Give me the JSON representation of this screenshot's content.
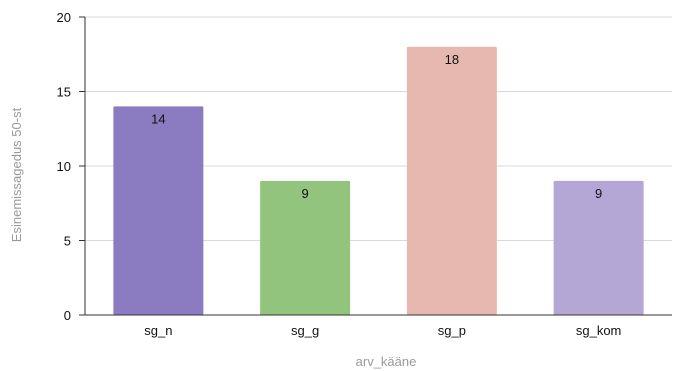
{
  "chart_data": {
    "type": "bar",
    "title": "",
    "xlabel": "arv_kääne",
    "ylabel": "Esinemissagedus 50-st",
    "categories": [
      "sg_n",
      "sg_g",
      "sg_p",
      "sg_kom"
    ],
    "values": [
      14,
      9,
      18,
      9
    ],
    "ylim": [
      0,
      20
    ],
    "yticks": [
      0,
      5,
      10,
      15,
      20
    ],
    "grid": true,
    "legend": "none",
    "bar_colors": [
      "#8b7bc0",
      "#93c47d",
      "#e6b8af",
      "#b4a7d6"
    ]
  }
}
